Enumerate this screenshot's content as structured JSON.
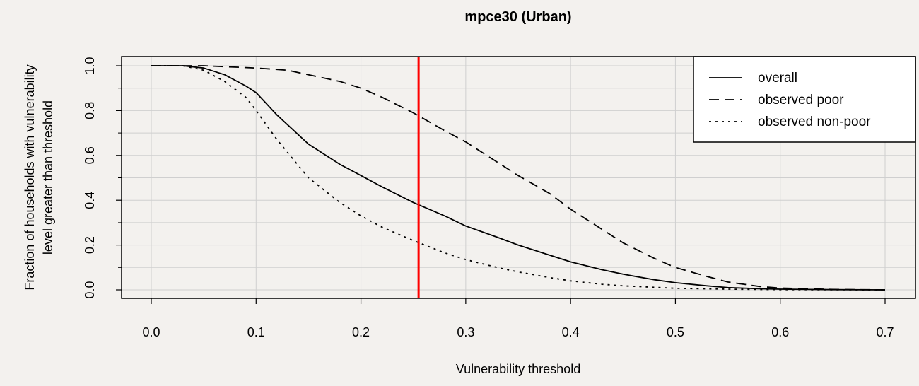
{
  "chart_data": {
    "type": "line",
    "title": "mpce30 (Urban)",
    "xlabel": "Vulnerability threshold",
    "ylabel_line1": "Fraction of households with vulnerability",
    "ylabel_line2": "level greater than threshold",
    "xlim": [
      0.0,
      0.7
    ],
    "ylim": [
      0.0,
      1.0
    ],
    "x_ticks": [
      0.0,
      0.1,
      0.2,
      0.3,
      0.4,
      0.5,
      0.6,
      0.7
    ],
    "x_tick_labels": [
      "0.0",
      "0.1",
      "0.2",
      "0.3",
      "0.4",
      "0.5",
      "0.6",
      "0.7"
    ],
    "y_ticks": [
      0.0,
      0.2,
      0.4,
      0.6,
      0.8,
      1.0
    ],
    "y_tick_labels": [
      "0.0",
      "0.2",
      "0.4",
      "0.6",
      "0.8",
      "1.0"
    ],
    "grid": true,
    "legend_position": "top-right",
    "vline": {
      "x": 0.255,
      "color": "#ff0000"
    },
    "series": [
      {
        "name": "overall",
        "style": "solid",
        "x": [
          0.0,
          0.03,
          0.05,
          0.07,
          0.09,
          0.1,
          0.12,
          0.15,
          0.18,
          0.2,
          0.22,
          0.25,
          0.28,
          0.3,
          0.33,
          0.35,
          0.38,
          0.4,
          0.43,
          0.45,
          0.48,
          0.5,
          0.53,
          0.55,
          0.58,
          0.6,
          0.65,
          0.7
        ],
        "y": [
          1.0,
          1.0,
          0.99,
          0.96,
          0.91,
          0.88,
          0.78,
          0.65,
          0.56,
          0.51,
          0.46,
          0.39,
          0.33,
          0.285,
          0.235,
          0.2,
          0.155,
          0.125,
          0.09,
          0.07,
          0.045,
          0.032,
          0.018,
          0.01,
          0.005,
          0.003,
          0.001,
          0.0
        ]
      },
      {
        "name": "observed poor",
        "style": "dashed",
        "x": [
          0.0,
          0.05,
          0.1,
          0.13,
          0.15,
          0.18,
          0.2,
          0.22,
          0.25,
          0.28,
          0.3,
          0.33,
          0.35,
          0.38,
          0.4,
          0.43,
          0.45,
          0.48,
          0.5,
          0.53,
          0.55,
          0.58,
          0.6,
          0.65,
          0.7
        ],
        "y": [
          1.0,
          1.0,
          0.99,
          0.98,
          0.96,
          0.93,
          0.9,
          0.86,
          0.79,
          0.71,
          0.66,
          0.57,
          0.51,
          0.43,
          0.36,
          0.27,
          0.21,
          0.14,
          0.1,
          0.06,
          0.035,
          0.015,
          0.008,
          0.002,
          0.0
        ]
      },
      {
        "name": "observed non-poor",
        "style": "dotted",
        "x": [
          0.0,
          0.03,
          0.05,
          0.07,
          0.09,
          0.1,
          0.12,
          0.15,
          0.18,
          0.2,
          0.22,
          0.25,
          0.28,
          0.3,
          0.33,
          0.35,
          0.38,
          0.4,
          0.43,
          0.45,
          0.5,
          0.55,
          0.6,
          0.7
        ],
        "y": [
          1.0,
          1.0,
          0.98,
          0.93,
          0.86,
          0.8,
          0.67,
          0.5,
          0.39,
          0.33,
          0.28,
          0.22,
          0.165,
          0.135,
          0.1,
          0.08,
          0.055,
          0.04,
          0.025,
          0.018,
          0.007,
          0.003,
          0.001,
          0.0
        ]
      }
    ]
  }
}
